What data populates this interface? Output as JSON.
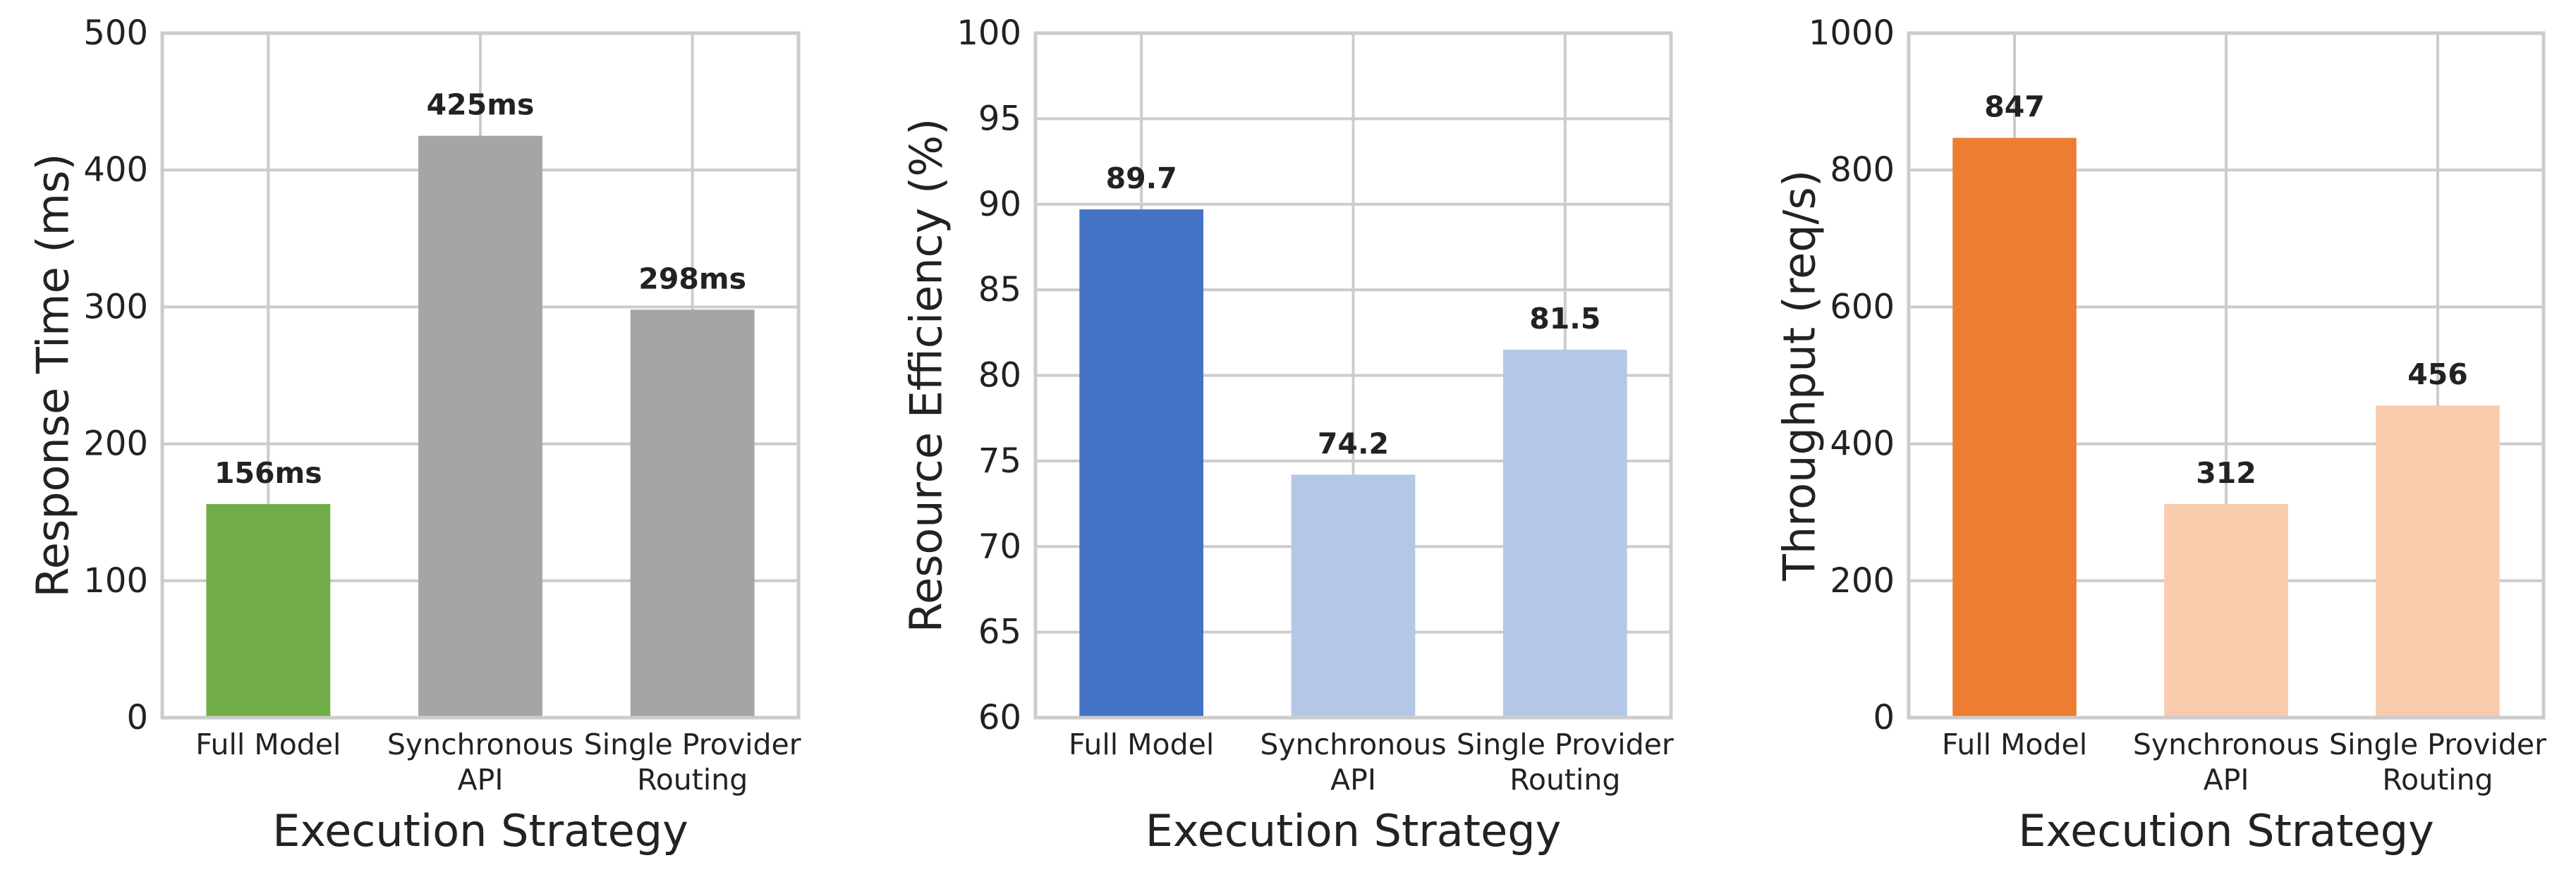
{
  "colors": {
    "grid": "#cccccc",
    "frame": "#cccccc",
    "text": "#222222",
    "green": "#70ad47",
    "gray": "#a5a5a5",
    "blue_dark": "#4472c4",
    "blue_light": "#b4c7e7",
    "orange_dark": "#ed7d31",
    "orange_light": "#f8cbad"
  },
  "chart_data": [
    {
      "type": "bar",
      "title": "",
      "xlabel": "Execution Strategy",
      "ylabel": "Response Time (ms)",
      "categories": [
        "Full Model",
        "Synchronous API",
        "Single Provider Routing"
      ],
      "category_lines": [
        [
          "Full Model"
        ],
        [
          "Synchronous",
          "API"
        ],
        [
          "Single Provider",
          "Routing"
        ]
      ],
      "values": [
        156,
        425,
        298
      ],
      "value_labels": [
        "156ms",
        "425ms",
        "298ms"
      ],
      "bar_colors": [
        "#70ad47",
        "#a5a5a5",
        "#a5a5a5"
      ],
      "ylim": [
        0,
        500
      ],
      "yticks": [
        0,
        100,
        200,
        300,
        400,
        500
      ],
      "grid": true,
      "legend": "none"
    },
    {
      "type": "bar",
      "title": "",
      "xlabel": "Execution Strategy",
      "ylabel": "Resource Efficiency (%)",
      "categories": [
        "Full Model",
        "Synchronous API",
        "Single Provider Routing"
      ],
      "category_lines": [
        [
          "Full Model"
        ],
        [
          "Synchronous",
          "API"
        ],
        [
          "Single Provider",
          "Routing"
        ]
      ],
      "values": [
        89.7,
        74.2,
        81.5
      ],
      "value_labels": [
        "89.7",
        "74.2",
        "81.5"
      ],
      "bar_colors": [
        "#4472c4",
        "#b4c7e7",
        "#b4c7e7"
      ],
      "ylim": [
        60,
        100
      ],
      "yticks": [
        60,
        65,
        70,
        75,
        80,
        85,
        90,
        95,
        100
      ],
      "grid": true,
      "legend": "none"
    },
    {
      "type": "bar",
      "title": "",
      "xlabel": "Execution Strategy",
      "ylabel": "Throughput (req/s)",
      "categories": [
        "Full Model",
        "Synchronous API",
        "Single Provider Routing"
      ],
      "category_lines": [
        [
          "Full Model"
        ],
        [
          "Synchronous",
          "API"
        ],
        [
          "Single Provider",
          "Routing"
        ]
      ],
      "values": [
        847,
        312,
        456
      ],
      "value_labels": [
        "847",
        "312",
        "456"
      ],
      "bar_colors": [
        "#ed7d31",
        "#f8cbad",
        "#f8cbad"
      ],
      "ylim": [
        0,
        1000
      ],
      "yticks": [
        0,
        200,
        400,
        600,
        800,
        1000
      ],
      "grid": true,
      "legend": "none"
    }
  ]
}
